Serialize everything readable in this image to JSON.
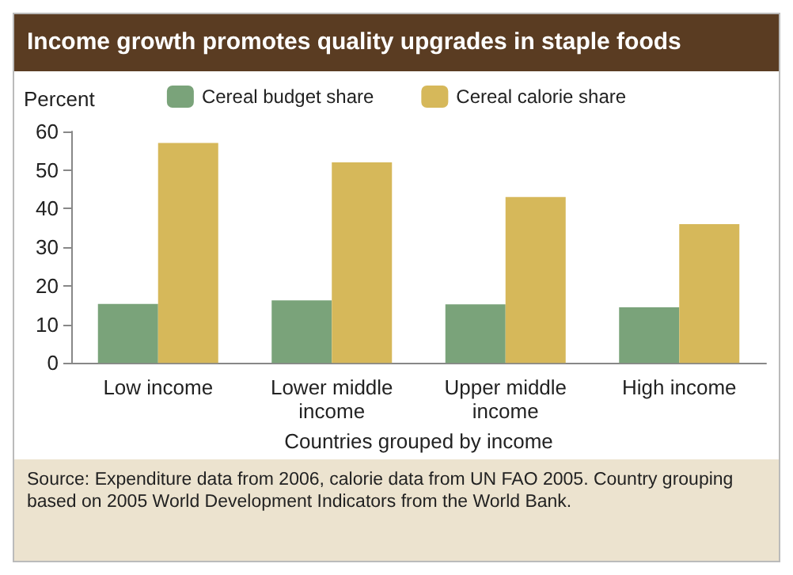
{
  "chart_data": {
    "type": "bar",
    "title": "Income growth promotes quality upgrades in staple foods",
    "xlabel": "Countries grouped by income",
    "ylabel": "Percent",
    "categories": [
      "Low income",
      "Lower middle\nincome",
      "Upper middle\nincome",
      "High income"
    ],
    "series": [
      {
        "name": "Cereal budget share",
        "color": "#7aa37a",
        "values": [
          15.3,
          16.2,
          15.2,
          14.4
        ]
      },
      {
        "name": "Cereal calorie share",
        "color": "#d6b85a",
        "values": [
          57,
          52,
          43,
          36
        ]
      }
    ],
    "ylim": [
      0,
      60
    ],
    "yticks": [
      0,
      10,
      20,
      30,
      40,
      50,
      60
    ],
    "grid": false,
    "legend": "top",
    "annotations": [
      "Source: Expenditure data from 2006, calorie data from UN FAO 2005. Country grouping based on 2005 World Development Indicators from the World Bank."
    ]
  }
}
